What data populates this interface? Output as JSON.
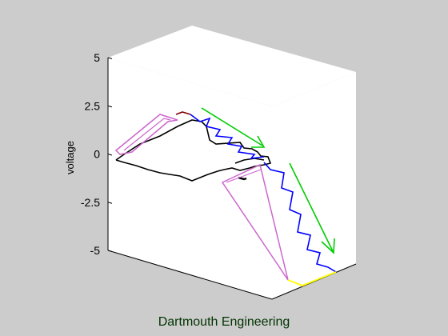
{
  "chart_data": {
    "type": "line",
    "title": "",
    "xlabel": "",
    "ylabel": "voltage",
    "zlim": [
      -5,
      5
    ],
    "zticks": [
      "5",
      "2.5",
      "0",
      "-2.5",
      "-5"
    ],
    "grid": false,
    "legend": "none",
    "colors": {
      "background": "#cccccc",
      "pane": "#ffffff",
      "black_trace": "#000000",
      "blue_trace": "#0000ff",
      "magenta_trace": "#cc66cc",
      "green_arrow": "#00cc00",
      "yellow_trace": "#ffff00",
      "dark_red_trace": "#800000"
    }
  },
  "footer": {
    "text": "Dartmouth Engineering",
    "color": "#003300"
  }
}
